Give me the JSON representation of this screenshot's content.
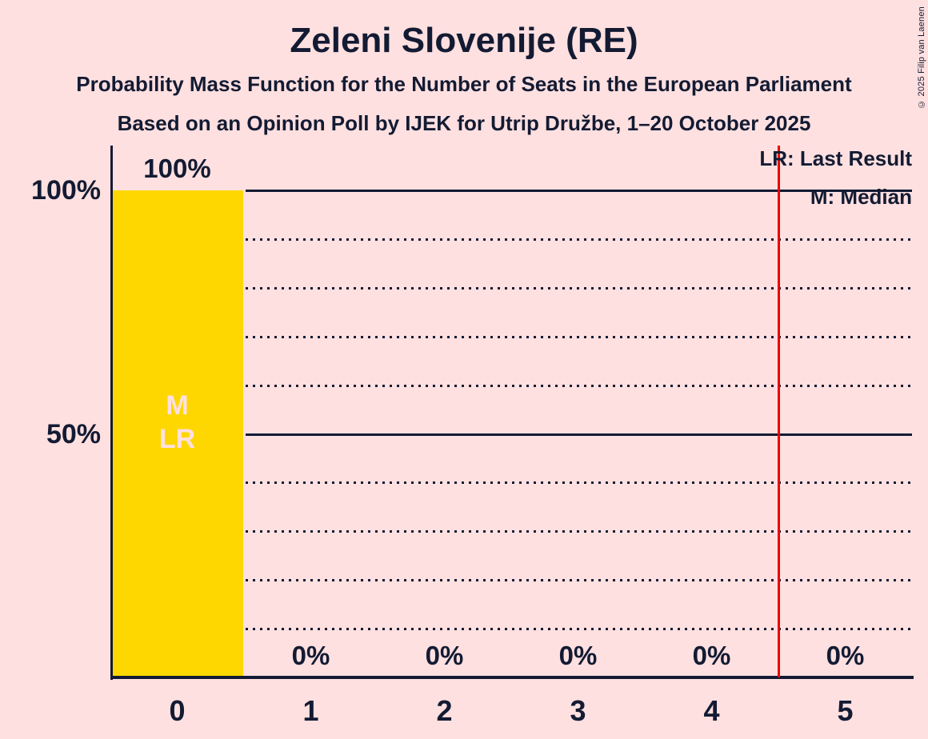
{
  "header": {
    "title": "Zeleni Slovenije (RE)",
    "subtitle1": "Probability Mass Function for the Number of Seats in the European Parliament",
    "subtitle2": "Based on an Opinion Poll by IJEK for Utrip Družbe, 1–20 October 2025"
  },
  "copyright": "© 2025 Filip van Laenen",
  "legend": {
    "last_result": "LR: Last Result",
    "median": "M: Median"
  },
  "colors": {
    "background": "#FFE0E0",
    "bar": "#FFD700",
    "text": "#131B33",
    "bar_annotation_text": "#FFE0E0",
    "last_result_line": "#EE0000"
  },
  "chart_data": {
    "type": "bar",
    "title": "Zeleni Slovenije (RE)",
    "categories": [
      "0",
      "1",
      "2",
      "3",
      "4",
      "5"
    ],
    "values": [
      100,
      0,
      0,
      0,
      0,
      0
    ],
    "value_labels": [
      "100%",
      "0%",
      "0%",
      "0%",
      "0%",
      "0%"
    ],
    "xlabel": "",
    "ylabel": "",
    "ylim": [
      0,
      100
    ],
    "yticks": [
      {
        "value": 100,
        "label": "100%"
      },
      {
        "value": 50,
        "label": "50%"
      }
    ],
    "solid_gridlines": [
      100,
      50
    ],
    "dotted_gridlines": [
      90,
      80,
      70,
      60,
      40,
      30,
      20,
      10
    ],
    "bar_annotations": {
      "category_index": 0,
      "lines": [
        "M",
        "LR"
      ]
    },
    "median_category": "0",
    "last_result_line_position": 4.5,
    "legend_position": "top-right",
    "grid": "horizontal"
  }
}
